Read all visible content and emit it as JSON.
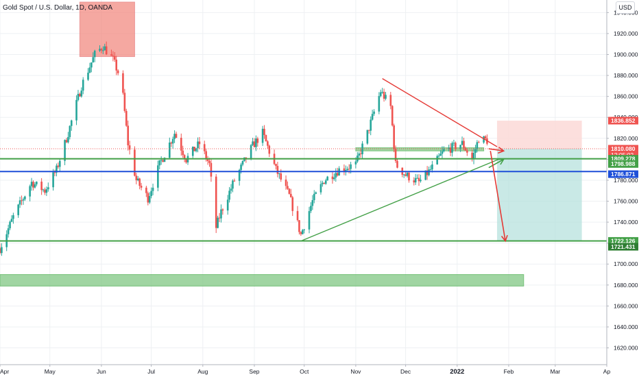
{
  "header": {
    "symbol_title": "Gold Spot / U.S. Dollar, 1D, OANDA",
    "currency": "USD"
  },
  "colors": {
    "up_candle": "#26a69a",
    "down_candle": "#ef5350",
    "green_line": "#43a047",
    "blue_line": "#1e4fd8",
    "red_line": "#e53935",
    "zone_green": "#81c784",
    "zone_red": "#f28b82",
    "target_zone": "#b2dfdb",
    "stop_zone": "#fcd9d7"
  },
  "chart_data": {
    "type": "candlestick",
    "title": "Gold Spot / U.S. Dollar, 1D, OANDA",
    "x_axis": {
      "labels": [
        "Apr",
        "May",
        "Jun",
        "Jul",
        "Aug",
        "Sep",
        "Oct",
        "Nov",
        "Dec",
        "2022",
        "Feb",
        "Mar",
        "Ap"
      ],
      "domain": [
        "2021-04-01",
        "2022-04-01"
      ]
    },
    "y_axis": {
      "ticks": [
        1620,
        1640,
        1660,
        1680,
        1700,
        1720,
        1740,
        1760,
        1780,
        1800,
        1820,
        1840,
        1860,
        1880,
        1900,
        1920,
        1940
      ],
      "tick_labels": [
        "1620.000",
        "1640.000",
        "1660.000",
        "1680.000",
        "1700.000",
        "1720.000",
        "1740.000",
        "1760.000",
        "1780.000",
        "1800.000",
        "1820.000",
        "1840.000",
        "1860.000",
        "1880.000",
        "1900.000",
        "1920.000",
        "1940.000"
      ],
      "range": [
        1604,
        1952
      ],
      "side": "right"
    },
    "price_path": [
      [
        "2021-04-01",
        1715
      ],
      [
        "2021-04-09",
        1745
      ],
      [
        "2021-04-20",
        1778
      ],
      [
        "2021-04-28",
        1770
      ],
      [
        "2021-05-05",
        1790
      ],
      [
        "2021-05-12",
        1825
      ],
      [
        "2021-05-20",
        1870
      ],
      [
        "2021-05-28",
        1900
      ],
      [
        "2021-06-02",
        1908
      ],
      [
        "2021-06-08",
        1895
      ],
      [
        "2021-06-13",
        1875
      ],
      [
        "2021-06-17",
        1815
      ],
      [
        "2021-06-22",
        1780
      ],
      [
        "2021-06-29",
        1763
      ],
      [
        "2021-07-06",
        1795
      ],
      [
        "2021-07-15",
        1825
      ],
      [
        "2021-07-22",
        1800
      ],
      [
        "2021-07-30",
        1815
      ],
      [
        "2021-08-05",
        1795
      ],
      [
        "2021-08-09",
        1735
      ],
      [
        "2021-08-12",
        1750
      ],
      [
        "2021-08-20",
        1780
      ],
      [
        "2021-08-31",
        1813
      ],
      [
        "2021-09-06",
        1825
      ],
      [
        "2021-09-14",
        1790
      ],
      [
        "2021-09-22",
        1765
      ],
      [
        "2021-09-29",
        1728
      ],
      [
        "2021-10-06",
        1760
      ],
      [
        "2021-10-13",
        1780
      ],
      [
        "2021-10-22",
        1790
      ],
      [
        "2021-11-01",
        1795
      ],
      [
        "2021-11-08",
        1825
      ],
      [
        "2021-11-16",
        1865
      ],
      [
        "2021-11-22",
        1850
      ],
      [
        "2021-11-25",
        1795
      ],
      [
        "2021-12-01",
        1785
      ],
      [
        "2021-12-09",
        1778
      ],
      [
        "2021-12-16",
        1790
      ],
      [
        "2021-12-24",
        1808
      ],
      [
        "2022-01-04",
        1815
      ],
      [
        "2022-01-10",
        1800
      ],
      [
        "2022-01-14",
        1820
      ],
      [
        "2022-01-19",
        1818
      ]
    ],
    "price_labels": [
      {
        "price": 1836.852,
        "label": "1836.852",
        "color": "#ef5350"
      },
      {
        "price": 1810.08,
        "label": "1810.080",
        "sublabel": "12:05:02",
        "color": "#ef5350"
      },
      {
        "price": 1800.5,
        "label": "1809.278",
        "color": "#43a047"
      },
      {
        "price": 1795.5,
        "label": "1798.988",
        "color": "#43a047"
      },
      {
        "price": 1785.8,
        "label": "1786.871",
        "color": "#1e4fd8"
      },
      {
        "price": 1722.126,
        "label": "1722.126",
        "color": "#43a047"
      },
      {
        "price": 1716.5,
        "label": "1721.431",
        "color": "#2e7d32"
      }
    ],
    "annotations": {
      "horizontal_lines": [
        {
          "price": 1800.5,
          "color": "green"
        },
        {
          "price": 1788.3,
          "color": "blue"
        },
        {
          "price": 1722.1,
          "color": "green"
        }
      ],
      "zones": [
        {
          "from": "2021-05-19",
          "to": "2021-06-21",
          "low": 1898,
          "high": 1950,
          "color": "red"
        },
        {
          "from": "2021-04-01",
          "to": "2022-02-10",
          "low": 1679,
          "high": 1690,
          "color": "green"
        },
        {
          "from": "2021-11-01",
          "to": "2022-01-17",
          "low": 1808,
          "high": 1811,
          "color": "green"
        }
      ],
      "trend_lines": [
        {
          "from": [
            "2021-11-17",
            1877
          ],
          "to": [
            "2022-01-25",
            1812
          ],
          "color": "red"
        },
        {
          "from": [
            "2021-09-29",
            1722
          ],
          "to": [
            "2022-01-26",
            1800
          ],
          "color": "green"
        }
      ],
      "arrows": [
        {
          "from": [
            "2022-01-20",
            1810
          ],
          "to": [
            "2022-01-29",
            1808
          ],
          "color": "red"
        },
        {
          "from": [
            "2022-01-20",
            1792
          ],
          "to": [
            "2022-01-29",
            1800
          ],
          "color": "green"
        },
        {
          "from": [
            "2022-01-21",
            1808
          ],
          "to": [
            "2022-01-30",
            1722
          ],
          "color": "red"
        }
      ],
      "position": {
        "from": "2022-01-25",
        "to": "2022-03-17",
        "entry": 1810.08,
        "stop": 1836.852,
        "target": 1722.126
      }
    }
  }
}
